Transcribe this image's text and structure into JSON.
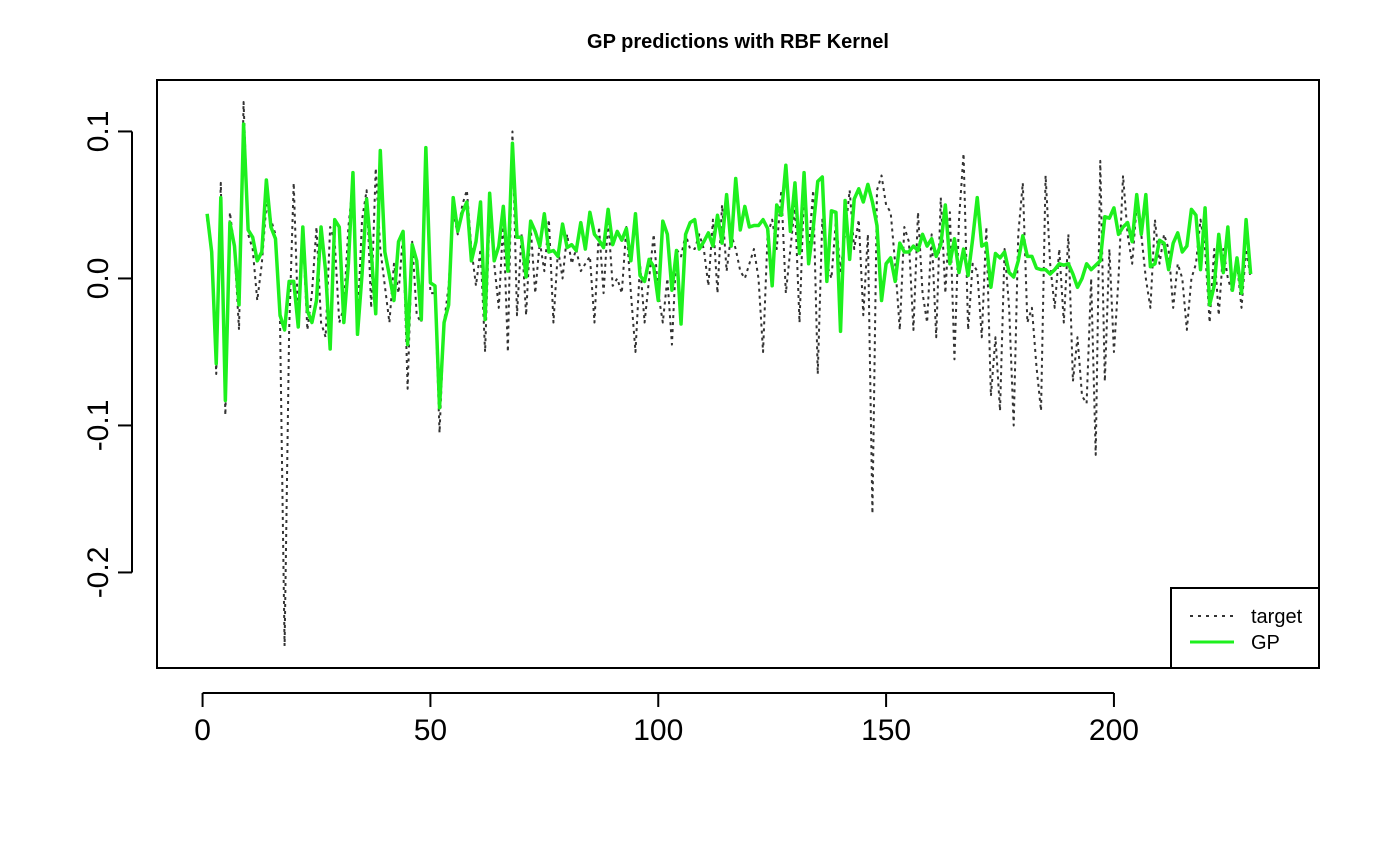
{
  "chart_data": {
    "type": "line",
    "title": "GP predictions with RBF Kernel",
    "xlabel": "",
    "ylabel": "",
    "xlim": [
      -10,
      245
    ],
    "ylim": [
      -0.265,
      0.135
    ],
    "x_ticks": [
      0,
      50,
      100,
      150,
      200
    ],
    "x_tick_labels": [
      "0",
      "50",
      "100",
      "150",
      "200"
    ],
    "y_ticks": [
      -0.2,
      -0.1,
      0.0,
      0.1
    ],
    "y_tick_labels": [
      "-0.2",
      "-0.1",
      "0.0",
      "0.1"
    ],
    "grid": false,
    "legend": {
      "position": "bottom-right",
      "entries": [
        "target",
        "GP"
      ]
    },
    "series": [
      {
        "name": "target",
        "color": "#333333",
        "line_style": "dotted",
        "x_start": 1,
        "values": [
          0.04,
          0.02,
          -0.065,
          0.065,
          -0.093,
          0.045,
          0.02,
          -0.035,
          0.12,
          0.03,
          0.02,
          -0.015,
          0.01,
          0.05,
          0.04,
          0.03,
          -0.03,
          -0.25,
          -0.035,
          0.065,
          -0.03,
          0.03,
          -0.035,
          -0.01,
          0.035,
          -0.03,
          -0.04,
          0.035,
          0.025,
          -0.03,
          -0.02,
          0.035,
          0.065,
          -0.03,
          0.04,
          0.06,
          -0.02,
          0.075,
          0.02,
          -0.005,
          -0.03,
          0.01,
          -0.01,
          0.03,
          -0.075,
          0.025,
          -0.025,
          -0.03,
          0.08,
          -0.01,
          -0.01,
          -0.105,
          -0.03,
          -0.005,
          0.045,
          0.03,
          0.05,
          0.06,
          0.02,
          -0.005,
          0.02,
          -0.05,
          0.045,
          0.01,
          -0.02,
          0.04,
          -0.05,
          0.1,
          -0.025,
          0.03,
          -0.025,
          0.035,
          -0.01,
          0.025,
          0.005,
          0.04,
          -0.03,
          0.02,
          0.0,
          0.03,
          0.01,
          0.02,
          0.005,
          0.01,
          0.015,
          -0.03,
          0.035,
          -0.01,
          0.04,
          -0.005,
          0.0,
          -0.01,
          0.035,
          -0.01,
          -0.05,
          0.01,
          -0.03,
          0.0,
          0.03,
          -0.01,
          -0.03,
          0.0,
          -0.045,
          0.02,
          0.015,
          0.03,
          0.02,
          0.02,
          0.03,
          0.02,
          -0.005,
          0.04,
          -0.01,
          0.05,
          0.005,
          0.03,
          0.02,
          0.005,
          0.0,
          0.01,
          0.02,
          0.0,
          -0.05,
          0.03,
          0.04,
          0.02,
          0.06,
          -0.01,
          0.02,
          0.05,
          -0.03,
          0.06,
          0.02,
          0.06,
          -0.065,
          0.04,
          0.01,
          0.0,
          0.04,
          0.005,
          0.03,
          0.06,
          0.02,
          0.04,
          -0.025,
          0.03,
          -0.16,
          0.06,
          0.07,
          0.05,
          0.045,
          0.01,
          -0.035,
          0.035,
          0.025,
          -0.035,
          0.045,
          -0.01,
          -0.03,
          0.03,
          -0.04,
          0.055,
          -0.01,
          0.045,
          -0.055,
          0.04,
          0.085,
          -0.035,
          0.01,
          0.005,
          -0.04,
          0.035,
          -0.08,
          -0.04,
          -0.09,
          0.02,
          -0.02,
          -0.1,
          0.03,
          0.065,
          -0.03,
          -0.02,
          -0.06,
          -0.09,
          0.07,
          0.01,
          -0.02,
          0.02,
          -0.03,
          0.03,
          -0.07,
          -0.04,
          -0.08,
          -0.085,
          0.0,
          -0.12,
          0.08,
          -0.07,
          0.02,
          -0.05,
          0.0,
          0.07,
          0.03,
          0.01,
          0.05,
          0.03,
          0.0,
          -0.02,
          0.04,
          0.01,
          0.03,
          0.02,
          -0.02,
          0.01,
          0.0,
          -0.035,
          0.0,
          0.01,
          0.04,
          0.02,
          -0.03,
          0.02,
          -0.025,
          0.02,
          0.0,
          -0.01,
          0.01,
          -0.02,
          0.02,
          0.0
        ]
      },
      {
        "name": "GP",
        "color": "#1ef01e",
        "line_style": "solid",
        "x_start": 1,
        "values": [
          0.044,
          0.018,
          -0.058,
          0.055,
          -0.083,
          0.038,
          0.022,
          -0.018,
          0.105,
          0.033,
          0.028,
          0.012,
          0.018,
          0.067,
          0.035,
          0.027,
          -0.025,
          -0.035,
          -0.002,
          -0.002,
          -0.033,
          0.035,
          -0.022,
          -0.03,
          -0.015,
          0.035,
          0.005,
          -0.048,
          0.04,
          0.035,
          -0.03,
          0.01,
          0.072,
          -0.038,
          0.003,
          0.054,
          0.018,
          -0.024,
          0.087,
          0.018,
          0.002,
          -0.015,
          0.025,
          0.032,
          -0.045,
          0.023,
          0.012,
          -0.028,
          0.089,
          -0.003,
          -0.005,
          -0.088,
          -0.03,
          -0.018,
          0.055,
          0.032,
          0.045,
          0.052,
          0.012,
          0.025,
          0.052,
          -0.028,
          0.058,
          0.012,
          0.022,
          0.049,
          0.005,
          0.092,
          0.028,
          0.028,
          0.001,
          0.039,
          0.032,
          0.022,
          0.044,
          0.018,
          0.019,
          0.015,
          0.037,
          0.021,
          0.023,
          0.019,
          0.038,
          0.02,
          0.045,
          0.03,
          0.026,
          0.021,
          0.047,
          0.023,
          0.032,
          0.026,
          0.034,
          0.012,
          0.044,
          0.002,
          -0.002,
          0.013,
          0.008,
          -0.015,
          0.039,
          0.03,
          -0.008,
          0.019,
          -0.031,
          0.03,
          0.038,
          0.04,
          0.02,
          0.025,
          0.031,
          0.022,
          0.043,
          0.024,
          0.057,
          0.022,
          0.068,
          0.033,
          0.049,
          0.035,
          0.036,
          0.036,
          0.04,
          0.034,
          -0.005,
          0.05,
          0.043,
          0.077,
          0.032,
          0.065,
          0.017,
          0.072,
          0.01,
          0.034,
          0.066,
          0.069,
          -0.002,
          0.046,
          0.045,
          -0.036,
          0.053,
          0.013,
          0.054,
          0.061,
          0.052,
          0.064,
          0.052,
          0.036,
          -0.015,
          0.01,
          0.014,
          -0.002,
          0.024,
          0.018,
          0.018,
          0.022,
          0.019,
          0.03,
          0.022,
          0.027,
          0.015,
          0.023,
          0.05,
          0.01,
          0.027,
          0.004,
          0.02,
          0.002,
          0.027,
          0.055,
          0.022,
          0.024,
          -0.006,
          0.017,
          0.014,
          0.018,
          0.004,
          0.001,
          0.012,
          0.029,
          0.015,
          0.015,
          0.007,
          0.006,
          0.006,
          0.003,
          0.006,
          0.01,
          0.009,
          0.01,
          0.003,
          -0.006,
          0.0,
          0.01,
          0.006,
          0.009,
          0.012,
          0.042,
          0.041,
          0.048,
          0.03,
          0.035,
          0.038,
          0.025,
          0.057,
          0.03,
          0.057,
          0.008,
          0.01,
          0.026,
          0.024,
          0.006,
          0.024,
          0.031,
          0.018,
          0.022,
          0.047,
          0.043,
          0.006,
          0.048,
          -0.018,
          -0.005,
          0.03,
          0.004,
          0.035,
          -0.008,
          0.014,
          -0.01,
          0.04,
          0.003
        ]
      }
    ]
  }
}
